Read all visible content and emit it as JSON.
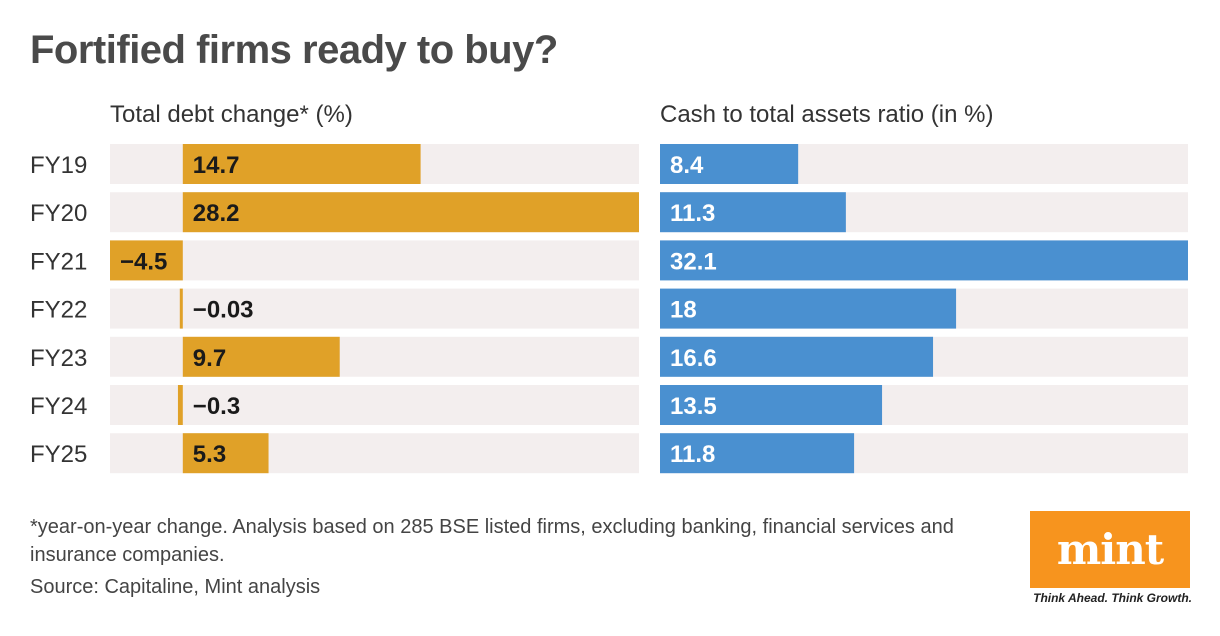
{
  "title": "Fortified firms ready to buy?",
  "footnote": "*year-on-year change. Analysis based on 285 BSE listed firms, excluding banking, financial services and insurance companies.",
  "source": "Source: Capitaline, Mint analysis",
  "logo": {
    "word": "mint",
    "tagline": "Think Ahead. Think Growth."
  },
  "colors": {
    "debt_bar": "#e0a128",
    "cash_bar": "#4a90d0",
    "track": "#f3eeee",
    "logo": "#f7941e"
  },
  "chart_data": [
    {
      "type": "bar",
      "orientation": "horizontal",
      "title": "Total debt change* (%)",
      "categories": [
        "FY19",
        "FY20",
        "FY21",
        "FY22",
        "FY23",
        "FY24",
        "FY25"
      ],
      "values": [
        14.7,
        28.2,
        -4.5,
        -0.03,
        9.7,
        -0.3,
        5.3
      ],
      "value_labels": [
        "14.7",
        "28.2",
        "−4.5",
        "−0.03",
        "9.7",
        "−0.3",
        "5.3"
      ],
      "xlim": [
        -4.5,
        28.2
      ]
    },
    {
      "type": "bar",
      "orientation": "horizontal",
      "title": "Cash to total assets ratio (in %)",
      "categories": [
        "FY19",
        "FY20",
        "FY21",
        "FY22",
        "FY23",
        "FY24",
        "FY25"
      ],
      "values": [
        8.4,
        11.3,
        32.1,
        18,
        16.6,
        13.5,
        11.8
      ],
      "value_labels": [
        "8.4",
        "11.3",
        "32.1",
        "18",
        "16.6",
        "13.5",
        "11.8"
      ],
      "xlim": [
        0,
        32.1
      ]
    }
  ]
}
